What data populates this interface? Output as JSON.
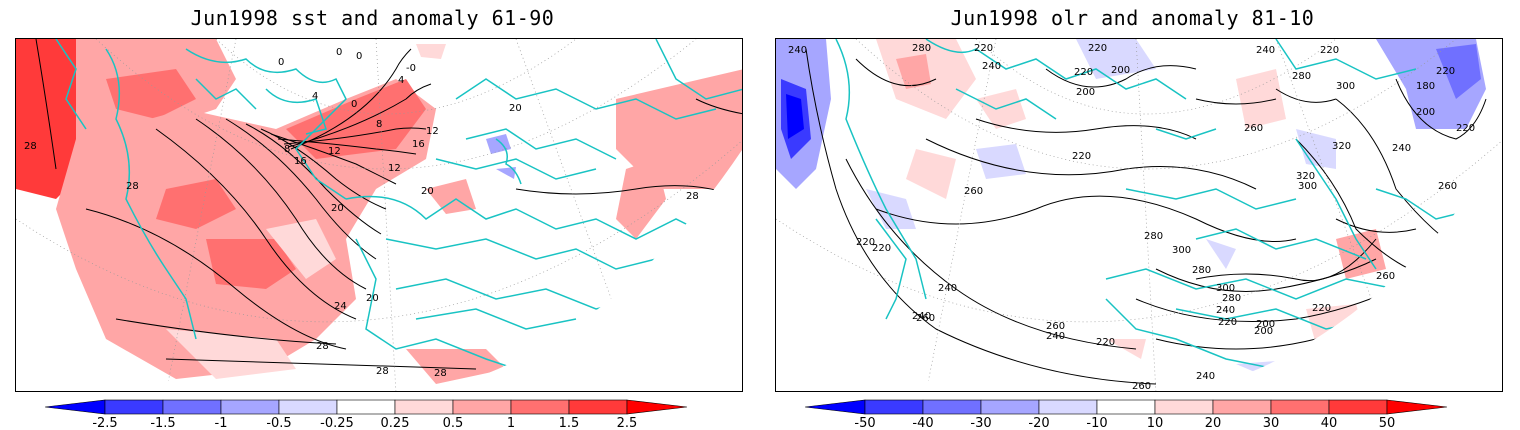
{
  "panels": [
    {
      "title": "Jun1998 sst and anomaly 61-90",
      "colorbar_labels": [
        "-2.5",
        "-1.5",
        "-1",
        "-0.5",
        "-0.25",
        "0.25",
        "0.5",
        "1",
        "1.5",
        "2.5"
      ],
      "contour_labels": [
        "0",
        "0",
        "0",
        "4",
        "-0",
        "4",
        "0",
        "8",
        "8",
        "12",
        "12",
        "16",
        "16",
        "12",
        "20",
        "20",
        "20",
        "24",
        "28",
        "28",
        "28",
        "28",
        "28",
        "28",
        "20"
      ]
    },
    {
      "title": "Jun1998 olr and anomaly 81-10",
      "colorbar_labels": [
        "-50",
        "-40",
        "-30",
        "-20",
        "-10",
        "10",
        "20",
        "30",
        "40",
        "50"
      ],
      "contour_labels": [
        "240",
        "280",
        "220",
        "220",
        "240",
        "220",
        "220",
        "200",
        "240",
        "200",
        "220",
        "180",
        "200",
        "220",
        "240",
        "260",
        "300",
        "280",
        "320",
        "320",
        "300",
        "260",
        "220",
        "260",
        "280",
        "300",
        "280",
        "220",
        "220",
        "260",
        "300",
        "280",
        "240",
        "220",
        "200",
        "260",
        "240",
        "260",
        "240",
        "220",
        "240",
        "260",
        "240",
        "220",
        "200"
      ]
    }
  ],
  "colors": {
    "neg_scale": [
      "#0000ff",
      "#3a3aff",
      "#7070ff",
      "#a6a6ff",
      "#d9d9ff"
    ],
    "pos_scale": [
      "#ffd9d9",
      "#ffa6a6",
      "#ff7070",
      "#ff3a3a",
      "#ff0000"
    ],
    "coastline": "#19c3c3",
    "contour": "#000000"
  }
}
